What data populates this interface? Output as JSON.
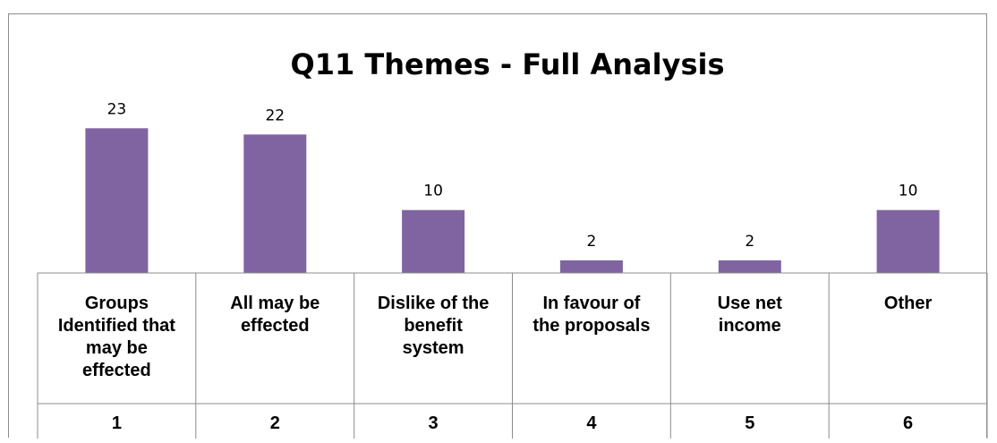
{
  "chart_data": {
    "type": "bar",
    "title": "Q11 Themes - Full Analysis",
    "categories": [
      [
        "Groups",
        "Identified that",
        "may be",
        "effected"
      ],
      [
        "All may be",
        "effected"
      ],
      [
        "Dislike of the",
        "benefit",
        "system"
      ],
      [
        "In favour of",
        "the proposals"
      ],
      [
        "Use net",
        "income"
      ],
      [
        "Other"
      ]
    ],
    "category_numbers": [
      "1",
      "2",
      "3",
      "4",
      "5",
      "6"
    ],
    "values": [
      23,
      22,
      10,
      2,
      2,
      10
    ],
    "data_labels": [
      "23",
      "22",
      "10",
      "2",
      "2",
      "10"
    ],
    "ylim": [
      0,
      25
    ],
    "grid": false,
    "colors": {
      "bar": "#8064a2",
      "axis": "#8c8c8c",
      "frame": "#8c8c8c"
    }
  }
}
